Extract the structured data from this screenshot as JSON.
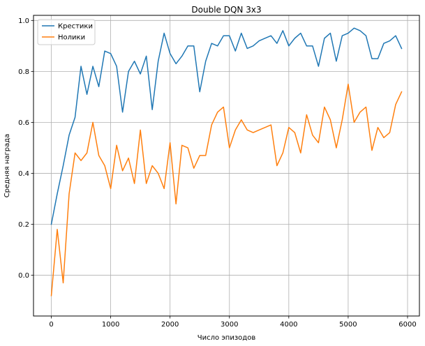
{
  "chart_data": {
    "type": "line",
    "title": "Double DQN 3x3",
    "xlabel": "Число эпизодов",
    "ylabel": "Средняя награда",
    "xlim": [
      -300,
      6200
    ],
    "ylim": [
      -0.16,
      1.02
    ],
    "x_ticks": [
      0,
      1000,
      2000,
      3000,
      4000,
      5000,
      6000
    ],
    "x_tick_labels": [
      "0",
      "1000",
      "2000",
      "3000",
      "4000",
      "5000",
      "6000"
    ],
    "y_ticks": [
      0.0,
      0.2,
      0.4,
      0.6,
      0.8,
      1.0
    ],
    "y_tick_labels": [
      "0.0",
      "0.2",
      "0.4",
      "0.6",
      "0.8",
      "1.0"
    ],
    "grid": true,
    "legend_position": "top-left",
    "x": [
      0,
      100,
      200,
      300,
      400,
      500,
      600,
      700,
      800,
      900,
      1000,
      1100,
      1200,
      1300,
      1400,
      1500,
      1600,
      1700,
      1800,
      1900,
      2000,
      2100,
      2200,
      2300,
      2400,
      2500,
      2600,
      2700,
      2800,
      2900,
      3000,
      3100,
      3200,
      3300,
      3400,
      3500,
      3600,
      3700,
      3800,
      3900,
      4000,
      4100,
      4200,
      4300,
      4400,
      4500,
      4600,
      4700,
      4800,
      4900,
      5000,
      5100,
      5200,
      5300,
      5400,
      5500,
      5600,
      5700,
      5800,
      5900
    ],
    "series": [
      {
        "name": "Крестики",
        "color": "#1f77b4",
        "values": [
          0.2,
          0.32,
          0.43,
          0.55,
          0.62,
          0.82,
          0.71,
          0.82,
          0.74,
          0.88,
          0.87,
          0.82,
          0.64,
          0.8,
          0.84,
          0.79,
          0.86,
          0.65,
          0.84,
          0.95,
          0.87,
          0.83,
          0.86,
          0.9,
          0.9,
          0.72,
          0.84,
          0.91,
          0.9,
          0.94,
          0.94,
          0.88,
          0.95,
          0.89,
          0.9,
          0.92,
          0.93,
          0.94,
          0.91,
          0.96,
          0.9,
          0.93,
          0.95,
          0.9,
          0.9,
          0.82,
          0.93,
          0.95,
          0.84,
          0.94,
          0.95,
          0.97,
          0.96,
          0.94,
          0.85,
          0.85,
          0.91,
          0.92,
          0.94,
          0.89
        ]
      },
      {
        "name": "Нолики",
        "color": "#ff7f0e",
        "values": [
          -0.08,
          0.18,
          -0.03,
          0.32,
          0.48,
          0.45,
          0.48,
          0.6,
          0.47,
          0.43,
          0.34,
          0.51,
          0.41,
          0.46,
          0.36,
          0.57,
          0.36,
          0.43,
          0.4,
          0.34,
          0.52,
          0.28,
          0.51,
          0.5,
          0.42,
          0.47,
          0.47,
          0.59,
          0.64,
          0.66,
          0.5,
          0.57,
          0.61,
          0.57,
          0.56,
          0.57,
          0.58,
          0.59,
          0.43,
          0.48,
          0.58,
          0.56,
          0.48,
          0.63,
          0.55,
          0.52,
          0.66,
          0.61,
          0.5,
          0.61,
          0.75,
          0.6,
          0.64,
          0.66,
          0.49,
          0.58,
          0.54,
          0.56,
          0.67,
          0.72
        ]
      }
    ]
  }
}
